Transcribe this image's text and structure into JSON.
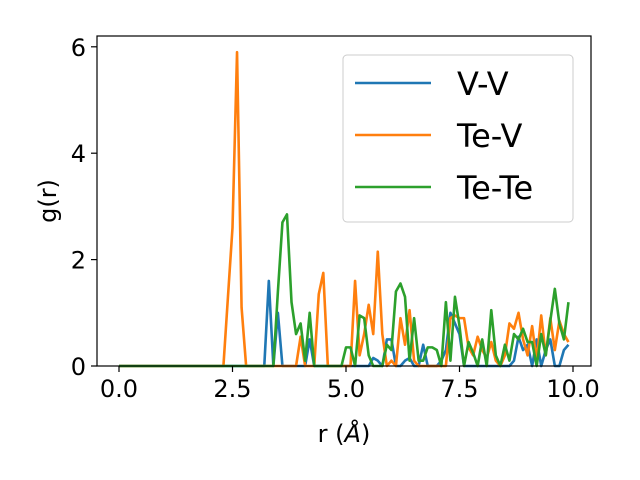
{
  "chart_data": {
    "type": "line",
    "title": "",
    "xlabel_prefix": "r (",
    "xlabel_unit": "Å",
    "xlabel_suffix": ")",
    "xlabel": "r (Å)",
    "ylabel": "g(r)",
    "xlim": [
      -0.5,
      10.4
    ],
    "ylim": [
      0,
      6.2
    ],
    "xticks": [
      0.0,
      2.5,
      5.0,
      7.5,
      10.0
    ],
    "xtick_labels": [
      "0.0",
      "2.5",
      "5.0",
      "7.5",
      "10.0"
    ],
    "yticks": [
      0,
      2,
      4,
      6
    ],
    "ytick_labels": [
      "0",
      "2",
      "4",
      "6"
    ],
    "grid": false,
    "legend_position": "top-right",
    "x_start": 0.0,
    "x_step": 0.1,
    "series": [
      {
        "name": "V-V",
        "color": "#1f77b4",
        "values": [
          0,
          0,
          0,
          0,
          0,
          0,
          0,
          0,
          0,
          0,
          0,
          0,
          0,
          0,
          0,
          0,
          0,
          0,
          0,
          0,
          0,
          0,
          0,
          0,
          0,
          0,
          0,
          0,
          0,
          0,
          0,
          0,
          0,
          1.6,
          0,
          1.0,
          0,
          0,
          0,
          0,
          0,
          0,
          0.5,
          0,
          0,
          0,
          0,
          0,
          0,
          0,
          0,
          0,
          0,
          0,
          0,
          0,
          0.15,
          0.1,
          0,
          0.5,
          0.5,
          0,
          0,
          0.1,
          0.15,
          0,
          0,
          0.4,
          0,
          0,
          0,
          0.1,
          0.3,
          1.0,
          0.8,
          0.6,
          0,
          0,
          0,
          0,
          0,
          0,
          0,
          0,
          0,
          0,
          0,
          0.1,
          0.55,
          0.3,
          0.4,
          0,
          0.5,
          0,
          0.3,
          0.5,
          0,
          0,
          0.3,
          0.4
        ]
      },
      {
        "name": "Te-V",
        "color": "#ff7f0e",
        "values": [
          0,
          0,
          0,
          0,
          0,
          0,
          0,
          0,
          0,
          0,
          0,
          0,
          0,
          0,
          0,
          0,
          0,
          0,
          0,
          0,
          0,
          0,
          0,
          0,
          1.3,
          2.6,
          5.9,
          1.1,
          0,
          0,
          0,
          0,
          0,
          0,
          0,
          0,
          0,
          0,
          0,
          0,
          0.55,
          0,
          0,
          0,
          1.35,
          1.75,
          0,
          0,
          0,
          0,
          0,
          0,
          1.6,
          0.2,
          0.6,
          1.15,
          0.6,
          2.15,
          0.6,
          0,
          0.1,
          0,
          0.9,
          0.4,
          1.05,
          0.1,
          0,
          0,
          0,
          0,
          0,
          0,
          0,
          0.9,
          0.95,
          0.9,
          0.9,
          0.35,
          0.2,
          0.55,
          0.3,
          0.15,
          0.45,
          0.1,
          0,
          0.2,
          0.8,
          0.7,
          1.0,
          0.5,
          0.2,
          0.75,
          0.1,
          0.95,
          0.2,
          0.9,
          0.3,
          0.85,
          0.6,
          0.45
        ]
      },
      {
        "name": "Te-Te",
        "color": "#2ca02c",
        "values": [
          0,
          0,
          0,
          0,
          0,
          0,
          0,
          0,
          0,
          0,
          0,
          0,
          0,
          0,
          0,
          0,
          0,
          0,
          0,
          0,
          0,
          0,
          0,
          0,
          0,
          0,
          0,
          0,
          0,
          0,
          0,
          0,
          0,
          0,
          0,
          1.4,
          2.7,
          2.85,
          1.2,
          0.6,
          0.8,
          0.1,
          1.0,
          0,
          0,
          0,
          0,
          0,
          0,
          0,
          0.35,
          0.35,
          0,
          0.95,
          0.9,
          0.2,
          0,
          0,
          0,
          0.4,
          0.3,
          1.4,
          1.55,
          1.3,
          0.1,
          0.9,
          0.1,
          0.1,
          0.35,
          0.35,
          0.3,
          0,
          1.2,
          0.1,
          1.3,
          0.75,
          0,
          0.45,
          0.25,
          0,
          0.5,
          0,
          1.05,
          0.2,
          0,
          0.4,
          0.1,
          0.6,
          0.5,
          0.7,
          0.45,
          0.45,
          0,
          0.6,
          0.2,
          0.85,
          1.45,
          0.8,
          0.5,
          1.2
        ]
      }
    ]
  }
}
